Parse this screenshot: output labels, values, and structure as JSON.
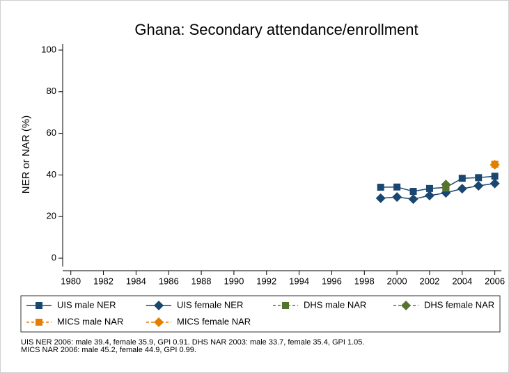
{
  "chart_data": {
    "type": "line",
    "title": "Ghana: Secondary attendance/enrollment",
    "y_label": "NER or NAR (%)",
    "x": [
      1999,
      2000,
      2001,
      2002,
      2003,
      2004,
      2005,
      2006
    ],
    "series": [
      {
        "name": "UIS male NER",
        "color": "#1a476f",
        "marker": "square",
        "dashed": false,
        "values": [
          34.1,
          34.2,
          32.1,
          33.5,
          34.0,
          38.4,
          38.7,
          39.4
        ]
      },
      {
        "name": "UIS female NER",
        "color": "#1a476f",
        "marker": "diamond",
        "dashed": false,
        "values": [
          28.8,
          29.4,
          28.4,
          30.1,
          31.4,
          33.4,
          34.8,
          35.9
        ]
      },
      {
        "name": "DHS male NAR",
        "color": "#55752f",
        "marker": "square",
        "dashed": true,
        "values": [
          null,
          null,
          null,
          null,
          33.7,
          null,
          null,
          null
        ]
      },
      {
        "name": "DHS female NAR",
        "color": "#55752f",
        "marker": "diamond",
        "dashed": true,
        "values": [
          null,
          null,
          null,
          null,
          35.4,
          null,
          null,
          null
        ]
      },
      {
        "name": "MICS male NAR",
        "color": "#e37e00",
        "marker": "square",
        "dashed": true,
        "values": [
          null,
          null,
          null,
          null,
          null,
          null,
          null,
          45.2
        ]
      },
      {
        "name": "MICS female NAR",
        "color": "#e37e00",
        "marker": "diamond",
        "dashed": true,
        "values": [
          null,
          null,
          null,
          null,
          null,
          null,
          null,
          44.9
        ]
      }
    ],
    "xlim": [
      1979.5,
      2006.4
    ],
    "xticks": [
      1980,
      1982,
      1984,
      1986,
      1988,
      1990,
      1992,
      1994,
      1996,
      1998,
      2000,
      2002,
      2004,
      2006
    ],
    "ylim": [
      -4,
      103
    ],
    "yticks": [
      0,
      20,
      40,
      60,
      80,
      100
    ],
    "notes": [
      "UIS NER 2006: male 39.4, female 35.9, GPI 0.91. DHS NAR 2003: male 33.7, female 35.4, GPI 1.05.",
      "MICS NAR 2006: male 45.2, female 44.9, GPI 0.99."
    ]
  }
}
